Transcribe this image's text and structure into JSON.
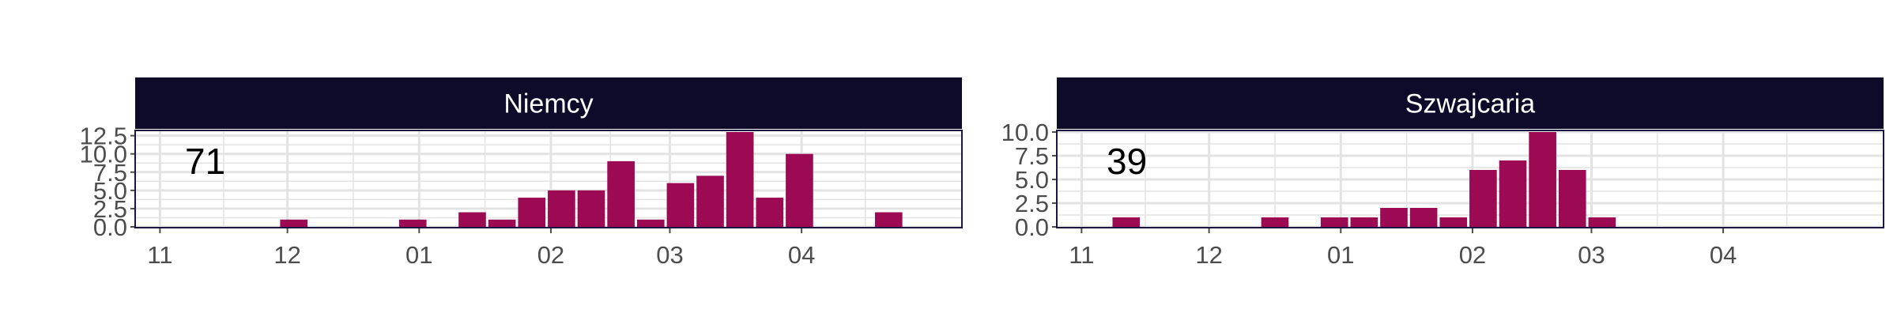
{
  "colors": {
    "bar": "#9b0a52",
    "strip": "#0e0a2a",
    "strip_text": "#ffffff",
    "panel_border": "#1a1740",
    "grid": "#e3e3e3",
    "axis_text": "#4d4d4d"
  },
  "chart_data": [
    {
      "type": "bar",
      "panel_title": "Niemcy",
      "annotation": "71",
      "xlabel": "",
      "ylabel": "",
      "x_ticks": [
        "11",
        "12",
        "01",
        "02",
        "03",
        "04"
      ],
      "y_ticks": [
        "0.0",
        "2.5",
        "5.0",
        "7.5",
        "10.0",
        "12.5"
      ],
      "ylim": [
        0,
        13
      ],
      "grid": true,
      "categories": [
        "2021-11-08",
        "2021-11-15",
        "2021-11-22",
        "2021-11-29",
        "2021-12-06",
        "2021-12-13",
        "2021-12-20",
        "2021-12-27",
        "2022-01-03",
        "2022-01-10",
        "2022-01-17",
        "2022-01-24",
        "2022-01-31",
        "2022-02-07",
        "2022-02-14",
        "2022-02-21",
        "2022-02-28",
        "2022-03-07",
        "2022-03-14",
        "2022-03-21",
        "2022-03-28",
        "2022-04-04",
        "2022-04-11",
        "2022-04-18"
      ],
      "values": [
        0,
        0,
        0,
        1,
        0,
        0,
        0,
        1,
        0,
        2,
        1,
        4,
        5,
        5,
        9,
        1,
        6,
        7,
        13,
        4,
        10,
        0,
        0,
        2
      ]
    },
    {
      "type": "bar",
      "panel_title": "Szwajcaria",
      "annotation": "39",
      "xlabel": "",
      "ylabel": "",
      "x_ticks": [
        "11",
        "12",
        "01",
        "02",
        "03",
        "04"
      ],
      "y_ticks": [
        "0.0",
        "2.5",
        "5.0",
        "7.5",
        "10.0"
      ],
      "ylim": [
        0,
        10
      ],
      "grid": true,
      "categories": [
        "2021-11-08",
        "2021-11-15",
        "2021-11-22",
        "2021-11-29",
        "2021-12-06",
        "2021-12-13",
        "2021-12-20",
        "2021-12-27",
        "2022-01-03",
        "2022-01-10",
        "2022-01-17",
        "2022-01-24",
        "2022-01-31",
        "2022-02-07",
        "2022-02-14",
        "2022-02-21",
        "2022-02-28",
        "2022-03-07",
        "2022-03-14",
        "2022-03-21",
        "2022-03-28",
        "2022-04-04",
        "2022-04-11",
        "2022-04-18"
      ],
      "values": [
        1,
        0,
        0,
        0,
        0,
        1,
        0,
        1,
        1,
        2,
        2,
        1,
        6,
        7,
        10,
        6,
        1,
        0,
        0,
        0,
        0,
        0,
        0,
        0
      ]
    }
  ]
}
